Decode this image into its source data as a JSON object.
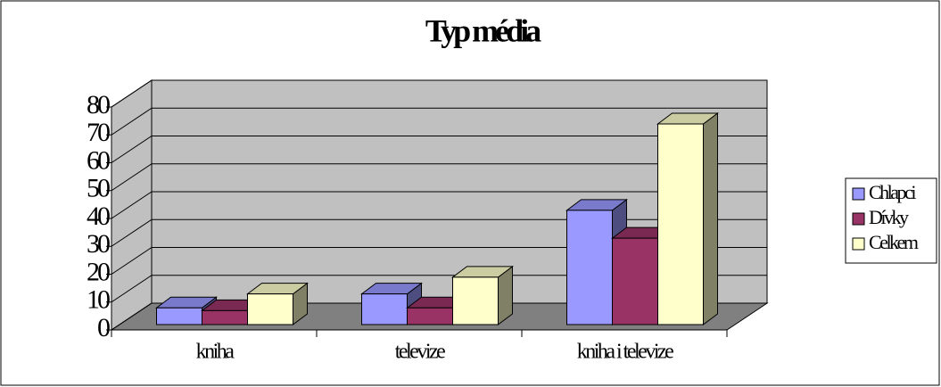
{
  "chart_data": {
    "type": "bar3d",
    "title": "Typ média",
    "categories": [
      "kniha",
      "televize",
      "kniha i televize"
    ],
    "series": [
      {
        "name": "Chlapci",
        "color": "#9999ff",
        "values": [
          6,
          11,
          41
        ]
      },
      {
        "name": "Dívky",
        "color": "#993366",
        "values": [
          5,
          6,
          31
        ]
      },
      {
        "name": "Celkem",
        "color": "#ffffcc",
        "values": [
          11,
          17,
          72
        ]
      }
    ],
    "ylim": [
      0,
      80
    ],
    "yticks": [
      0,
      10,
      20,
      30,
      40,
      50,
      60,
      70,
      80
    ],
    "grid": true,
    "legend": "right"
  }
}
